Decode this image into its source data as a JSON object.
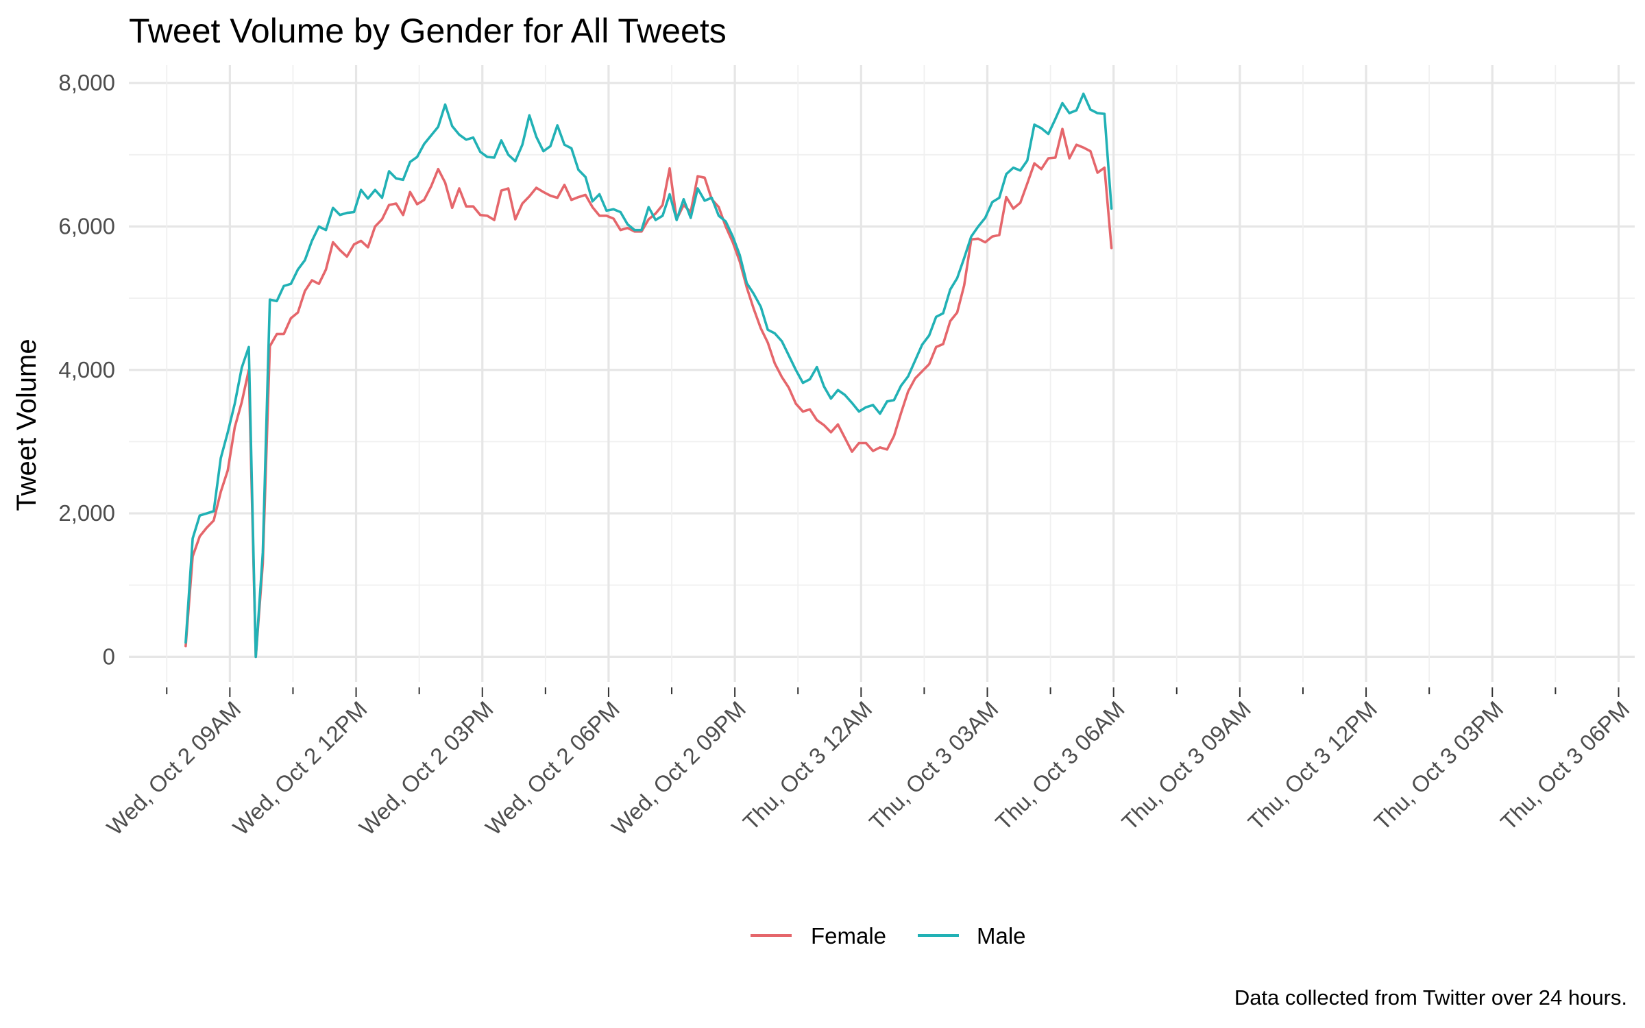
{
  "chart_data": {
    "type": "line",
    "title": "Tweet Volume by Gender for All Tweets",
    "xlabel": "",
    "ylabel": "Tweet Volume",
    "caption": "Data collected from Twitter over 24 hours.",
    "x_start": "2019-10-02T07:57",
    "x_step_minutes": 10,
    "x_tick_labels": [
      "Wed, Oct 2 09AM",
      "Wed, Oct 2 12PM",
      "Wed, Oct 2 03PM",
      "Wed, Oct 2 06PM",
      "Wed, Oct 2 09PM",
      "Thu, Oct 3 12AM",
      "Thu, Oct 3 03AM",
      "Thu, Oct 3 06AM",
      "Thu, Oct 3 09AM",
      "Thu, Oct 3 12PM",
      "Thu, Oct 3 03PM",
      "Thu, Oct 3 06PM"
    ],
    "x_tick_times": [
      "2019-10-02T09:00",
      "2019-10-02T12:00",
      "2019-10-02T15:00",
      "2019-10-02T18:00",
      "2019-10-02T21:00",
      "2019-10-03T00:00",
      "2019-10-03T03:00",
      "2019-10-03T06:00",
      "2019-10-03T09:00",
      "2019-10-03T12:00",
      "2019-10-03T15:00",
      "2019-10-03T18:00"
    ],
    "y_tick_labels": [
      "0",
      "2,000",
      "4,000",
      "6,000",
      "8,000"
    ],
    "ylim": [
      -350,
      8250
    ],
    "xlim": [
      "2019-10-02T06:36",
      "2019-10-03T18:23"
    ],
    "grid": true,
    "legend_position": "bottom",
    "series": [
      {
        "name": "Female",
        "color": "#e5666b",
        "values": [
          150,
          1400,
          1680,
          1800,
          1900,
          2300,
          2600,
          3200,
          3550,
          4000,
          0,
          1300,
          4330,
          4500,
          4500,
          4720,
          4800,
          5100,
          5250,
          5200,
          5400,
          5780,
          5670,
          5580,
          5750,
          5800,
          5710,
          6000,
          6100,
          6300,
          6320,
          6160,
          6480,
          6310,
          6370,
          6560,
          6800,
          6610,
          6260,
          6530,
          6280,
          6280,
          6160,
          6150,
          6090,
          6500,
          6530,
          6100,
          6320,
          6420,
          6540,
          6480,
          6430,
          6400,
          6580,
          6370,
          6410,
          6440,
          6270,
          6150,
          6150,
          6110,
          5950,
          5980,
          5930,
          5930,
          6100,
          6180,
          6300,
          6810,
          6100,
          6300,
          6200,
          6700,
          6680,
          6380,
          6270,
          6000,
          5780,
          5510,
          5150,
          4850,
          4580,
          4380,
          4090,
          3900,
          3750,
          3530,
          3420,
          3450,
          3300,
          3230,
          3130,
          3240,
          3050,
          2860,
          2980,
          2980,
          2870,
          2920,
          2890,
          3080,
          3400,
          3700,
          3880,
          3980,
          4080,
          4320,
          4360,
          4680,
          4800,
          5180,
          5820,
          5830,
          5780,
          5860,
          5880,
          6410,
          6250,
          6330,
          6600,
          6880,
          6800,
          6950,
          6960,
          7360,
          6950,
          7140,
          7100,
          7050,
          6750,
          6820,
          5700
        ]
      },
      {
        "name": "Male",
        "color": "#21b1b5",
        "values": [
          200,
          1650,
          1970,
          2000,
          2030,
          2770,
          3130,
          3530,
          4030,
          4320,
          0,
          1450,
          4980,
          4960,
          5170,
          5200,
          5400,
          5530,
          5800,
          6000,
          5950,
          6260,
          6160,
          6190,
          6200,
          6510,
          6390,
          6510,
          6400,
          6770,
          6670,
          6650,
          6900,
          6970,
          7150,
          7270,
          7390,
          7700,
          7400,
          7280,
          7210,
          7240,
          7040,
          6970,
          6960,
          7200,
          7000,
          6910,
          7140,
          7550,
          7250,
          7050,
          7120,
          7410,
          7140,
          7090,
          6790,
          6690,
          6350,
          6450,
          6220,
          6240,
          6200,
          6030,
          5950,
          5950,
          6270,
          6090,
          6150,
          6450,
          6090,
          6380,
          6120,
          6530,
          6360,
          6400,
          6150,
          6070,
          5860,
          5600,
          5210,
          5060,
          4880,
          4560,
          4510,
          4400,
          4200,
          4000,
          3820,
          3870,
          4040,
          3770,
          3600,
          3720,
          3650,
          3540,
          3420,
          3480,
          3510,
          3390,
          3560,
          3580,
          3780,
          3910,
          4130,
          4350,
          4480,
          4740,
          4790,
          5120,
          5280,
          5560,
          5860,
          6000,
          6120,
          6340,
          6400,
          6730,
          6820,
          6780,
          6920,
          7420,
          7370,
          7290,
          7500,
          7720,
          7580,
          7620,
          7850,
          7630,
          7580,
          7570,
          6250
        ]
      }
    ]
  }
}
